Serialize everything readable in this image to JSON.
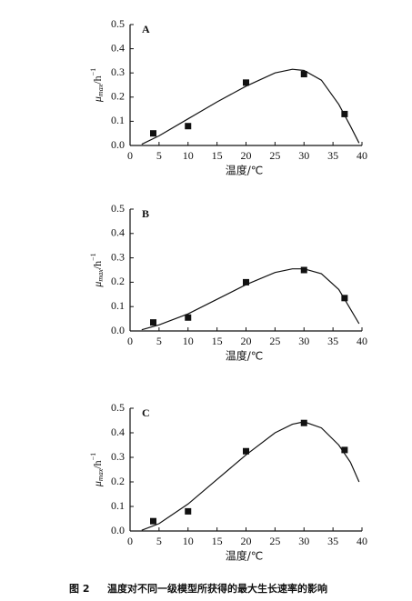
{
  "chart_data": [
    {
      "type": "scatter",
      "panel_label": "A",
      "x_label": "温度/℃",
      "y_label": {
        "symbol": "μ",
        "subscript": "max",
        "unit": "/h",
        "superscript": "−1"
      },
      "color": "#111111",
      "points": {
        "x": [
          4,
          10,
          20,
          30,
          37
        ],
        "y": [
          0.05,
          0.08,
          0.26,
          0.295,
          0.13
        ]
      },
      "curve": {
        "x": [
          2,
          5,
          10,
          15,
          20,
          25,
          28,
          30,
          33,
          36,
          38,
          39.5
        ],
        "y": [
          0.005,
          0.04,
          0.11,
          0.18,
          0.245,
          0.3,
          0.315,
          0.31,
          0.27,
          0.17,
          0.08,
          0.01
        ]
      },
      "xlim": [
        0,
        40
      ],
      "ylim": [
        0,
        0.5
      ],
      "xticks": [
        0,
        5,
        10,
        15,
        20,
        25,
        30,
        35,
        40
      ],
      "yticks": [
        {
          "value": 0,
          "label": "0.0"
        },
        0.1,
        0.2,
        0.3,
        0.4,
        0.5
      ]
    },
    {
      "type": "scatter",
      "panel_label": "B",
      "x_label": "温度/℃",
      "y_label": {
        "symbol": "μ",
        "subscript": "max",
        "unit": "/h",
        "superscript": "−1"
      },
      "color": "#111111",
      "points": {
        "x": [
          4,
          10,
          20,
          30,
          37
        ],
        "y": [
          0.035,
          0.055,
          0.2,
          0.25,
          0.135
        ]
      },
      "curve": {
        "x": [
          2,
          5,
          10,
          15,
          20,
          25,
          28,
          30,
          33,
          36,
          38,
          39.5
        ],
        "y": [
          0.005,
          0.025,
          0.07,
          0.13,
          0.19,
          0.24,
          0.255,
          0.255,
          0.235,
          0.17,
          0.09,
          0.03
        ]
      },
      "xlim": [
        0,
        40
      ],
      "ylim": [
        0,
        0.5
      ],
      "xticks": [
        0,
        5,
        10,
        15,
        20,
        25,
        30,
        35,
        40
      ],
      "yticks": [
        {
          "value": 0,
          "label": "0.0"
        },
        0.1,
        0.2,
        0.3,
        0.4,
        0.5
      ]
    },
    {
      "type": "scatter",
      "panel_label": "C",
      "x_label": "温度/℃",
      "y_label": {
        "symbol": "μ",
        "subscript": "max",
        "unit": "/h",
        "superscript": "−1"
      },
      "color": "#111111",
      "points": {
        "x": [
          4,
          10,
          20,
          30,
          37
        ],
        "y": [
          0.04,
          0.08,
          0.325,
          0.44,
          0.33
        ]
      },
      "curve": {
        "x": [
          2,
          5,
          10,
          15,
          20,
          25,
          28,
          30,
          33,
          36,
          38,
          39.5
        ],
        "y": [
          0.003,
          0.03,
          0.11,
          0.21,
          0.31,
          0.4,
          0.435,
          0.445,
          0.42,
          0.35,
          0.28,
          0.2
        ]
      },
      "xlim": [
        0,
        40
      ],
      "ylim": [
        0,
        0.5
      ],
      "xticks": [
        0,
        5,
        10,
        15,
        20,
        25,
        30,
        35,
        40
      ],
      "yticks": [
        {
          "value": 0,
          "label": "0.0"
        },
        0.1,
        0.2,
        0.3,
        0.4,
        0.5
      ]
    }
  ],
  "caption": {
    "figure": "图 2",
    "text": "温度对不同一级模型所获得的最大生长速率的影响"
  }
}
